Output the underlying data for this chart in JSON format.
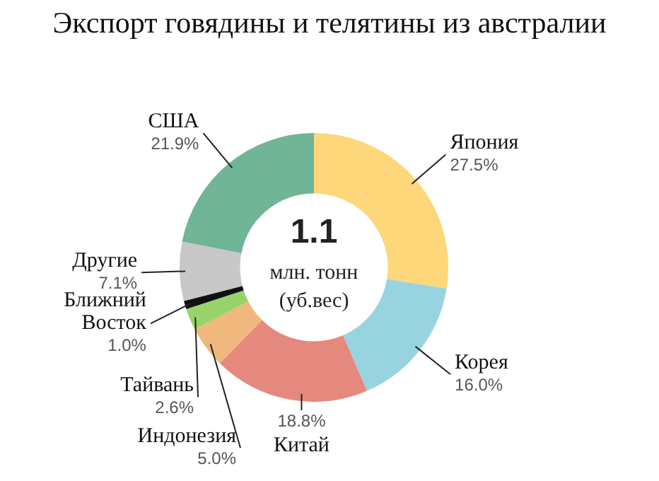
{
  "chart_data": {
    "type": "donut",
    "title": "Экспорт говядины и телятины из австралии",
    "categories": [
      "Япония",
      "Корея",
      "Китай",
      "Индонезия",
      "Тайвань",
      "Ближний Восток",
      "Другие",
      "США"
    ],
    "values": [
      27.5,
      16.0,
      18.8,
      5.0,
      2.6,
      1.0,
      7.1,
      21.9
    ],
    "colors": [
      "#fdd77a",
      "#97d4e0",
      "#e5887e",
      "#f0b87c",
      "#98d36a",
      "#111111",
      "#c8c8c8",
      "#6fb596"
    ],
    "value_labels": [
      "27.5%",
      "16.0%",
      "18.8%",
      "5.0%",
      "2.6%",
      "1.0%",
      "7.1%",
      "21.9%"
    ],
    "annotations": [
      "1.1",
      "млн. тонн",
      "(уб.вес)"
    ],
    "legend": false
  }
}
